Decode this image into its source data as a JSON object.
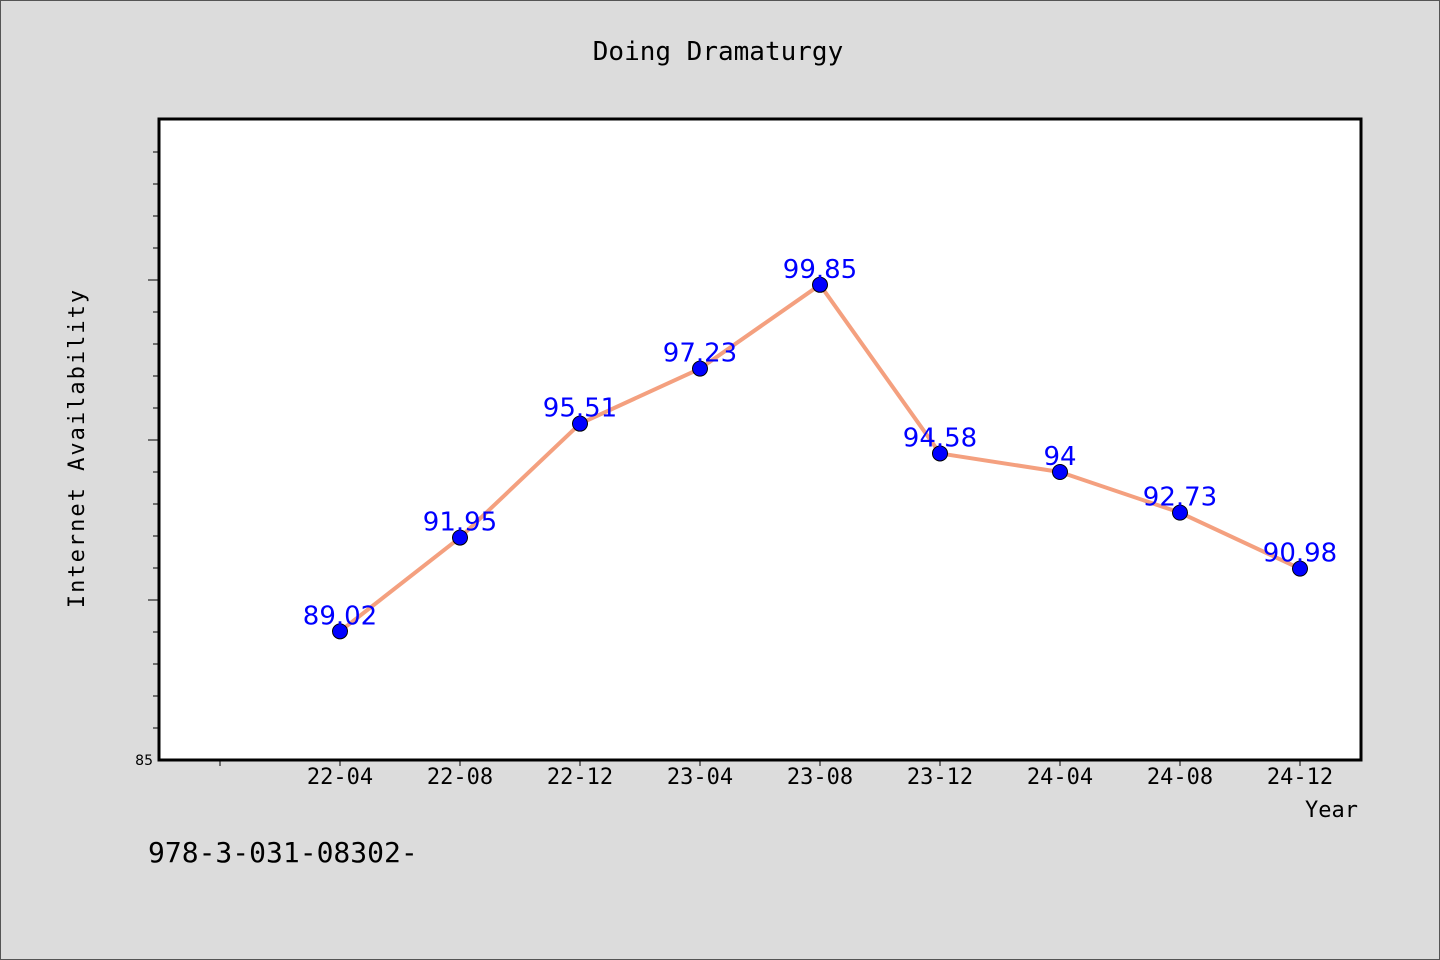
{
  "chart_data": {
    "type": "line",
    "title": "Doing Dramaturgy",
    "xlabel": "Year",
    "ylabel": "Internet Availability",
    "categories": [
      "22-04",
      "22-08",
      "22-12",
      "23-04",
      "23-08",
      "23-12",
      "24-04",
      "24-08",
      "24-12"
    ],
    "series": [
      {
        "values": [
          89.02,
          91.95,
          95.51,
          97.23,
          99.85,
          94.58,
          94,
          92.73,
          90.98
        ],
        "data_labels": [
          "89.02",
          "91.95",
          "95.51",
          "97.23",
          "99.85",
          "94.58",
          "94",
          "92.73",
          "90.98"
        ]
      }
    ],
    "ylim": [
      85,
      105
    ],
    "y_tick_labels": [
      {
        "value": 85,
        "label": "85"
      }
    ],
    "grid": false,
    "line_color": "#f4a07f",
    "marker_color": "#0000ff",
    "data_label_color": "#0000ff",
    "plot_background": "#ffffff",
    "figure_background": "#dcdcdc"
  },
  "footnote": "978-3-031-08302-"
}
